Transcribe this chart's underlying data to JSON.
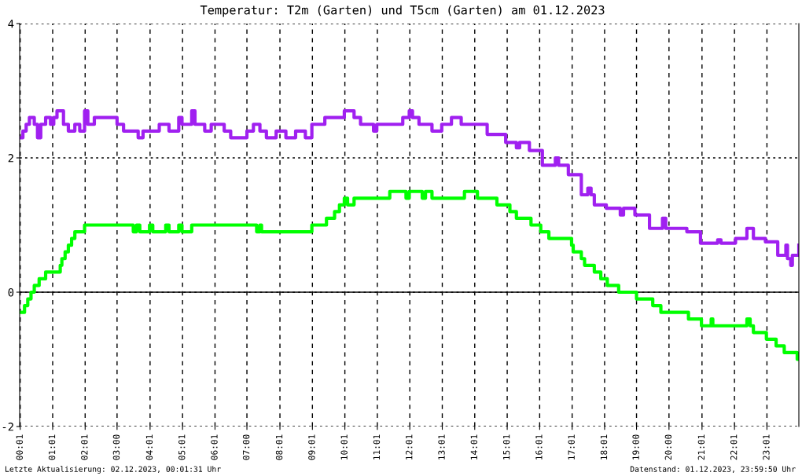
{
  "chart_data": {
    "type": "step",
    "title": "Temperatur: T2m (Garten) und T5cm (Garten) am 01.12.2023",
    "annotations": [
      "Letzte Aktualisierung: 02.12.2023, 00:01:31 Uhr",
      "Datenstand: 01.12.2023, 23:59:50 Uhr"
    ],
    "series": [
      {
        "color": "#00ff00",
        "x": [
          0.0,
          0.15,
          0.25,
          0.35,
          0.45,
          0.6,
          0.8,
          1.25,
          1.3,
          1.4,
          1.5,
          1.6,
          1.7,
          2.0,
          3.5,
          3.6,
          3.7,
          4.0,
          4.1,
          4.5,
          4.6,
          4.9,
          5.0,
          5.3,
          7.3,
          7.4,
          7.45,
          9.0,
          9.45,
          9.7,
          9.85,
          10.0,
          10.1,
          10.3,
          11.4,
          11.9,
          12.0,
          12.4,
          12.5,
          12.7,
          13.7,
          14.1,
          14.7,
          15.1,
          15.3,
          15.75,
          16.05,
          16.3,
          17.0,
          17.05,
          17.3,
          17.4,
          17.7,
          17.9,
          18.1,
          18.45,
          19.0,
          19.5,
          19.75,
          20.6,
          21.0,
          21.3,
          21.35,
          22.4,
          22.5,
          22.6,
          23.0,
          23.3,
          23.55,
          23.95,
          24.0
        ],
        "values": [
          -0.3,
          -0.2,
          -0.1,
          0.0,
          0.1,
          0.2,
          0.3,
          0.4,
          0.5,
          0.6,
          0.7,
          0.8,
          0.9,
          1.0,
          0.9,
          1.0,
          0.9,
          1.0,
          0.9,
          1.0,
          0.9,
          1.0,
          0.9,
          1.0,
          0.9,
          1.0,
          0.9,
          1.0,
          1.1,
          1.2,
          1.3,
          1.4,
          1.3,
          1.4,
          1.5,
          1.4,
          1.5,
          1.4,
          1.5,
          1.4,
          1.5,
          1.4,
          1.3,
          1.2,
          1.1,
          1.0,
          0.9,
          0.8,
          0.7,
          0.6,
          0.5,
          0.4,
          0.3,
          0.2,
          0.1,
          0.0,
          -0.1,
          -0.2,
          -0.3,
          -0.4,
          -0.5,
          -0.4,
          -0.5,
          -0.4,
          -0.5,
          -0.6,
          -0.7,
          -0.8,
          -0.9,
          -1.0,
          -1.0
        ]
      },
      {
        "color": "#a020f0",
        "x": [
          0.0,
          0.1,
          0.2,
          0.3,
          0.45,
          0.55,
          0.65,
          0.8,
          0.95,
          1.05,
          1.15,
          1.35,
          1.5,
          1.7,
          1.85,
          2.0,
          2.1,
          2.3,
          3.0,
          3.2,
          3.5,
          3.65,
          3.8,
          4.3,
          4.6,
          4.9,
          5.0,
          5.3,
          5.4,
          5.7,
          5.9,
          6.3,
          6.5,
          6.9,
          7.0,
          7.2,
          7.4,
          7.6,
          7.9,
          8.2,
          8.5,
          8.8,
          9.0,
          9.4,
          9.8,
          10.0,
          10.3,
          10.5,
          10.9,
          11.0,
          11.8,
          12.0,
          12.1,
          12.3,
          12.7,
          13.0,
          13.3,
          13.6,
          14.4,
          14.97,
          15.3,
          15.4,
          15.7,
          16.1,
          16.5,
          16.6,
          16.9,
          17.3,
          17.5,
          17.6,
          17.7,
          18.07,
          18.5,
          18.6,
          18.95,
          19.4,
          19.8,
          19.9,
          20.55,
          20.97,
          21.5,
          21.6,
          22.05,
          22.4,
          22.6,
          22.97,
          23.35,
          23.6,
          23.65,
          23.75,
          23.8,
          24.0
        ],
        "values": [
          2.3,
          2.4,
          2.5,
          2.6,
          2.5,
          2.3,
          2.5,
          2.6,
          2.5,
          2.6,
          2.7,
          2.5,
          2.4,
          2.5,
          2.4,
          2.7,
          2.5,
          2.6,
          2.5,
          2.4,
          2.4,
          2.3,
          2.4,
          2.5,
          2.4,
          2.6,
          2.5,
          2.7,
          2.5,
          2.4,
          2.5,
          2.4,
          2.3,
          2.3,
          2.4,
          2.5,
          2.4,
          2.3,
          2.4,
          2.3,
          2.4,
          2.3,
          2.5,
          2.6,
          2.6,
          2.7,
          2.6,
          2.5,
          2.4,
          2.5,
          2.6,
          2.7,
          2.6,
          2.5,
          2.4,
          2.5,
          2.6,
          2.5,
          2.35,
          2.23,
          2.15,
          2.23,
          2.11,
          1.89,
          2.0,
          1.89,
          1.75,
          1.45,
          1.55,
          1.45,
          1.3,
          1.25,
          1.15,
          1.25,
          1.15,
          0.95,
          1.1,
          0.95,
          0.9,
          0.73,
          0.78,
          0.73,
          0.8,
          0.95,
          0.8,
          0.75,
          0.55,
          0.7,
          0.5,
          0.4,
          0.55,
          0.7
        ]
      }
    ],
    "xlim": [
      0,
      24
    ],
    "xticks": [
      {
        "value": 0.017,
        "label": "00:01"
      },
      {
        "value": 1.017,
        "label": "01:01"
      },
      {
        "value": 2.017,
        "label": "02:01"
      },
      {
        "value": 3.0,
        "label": "03:00"
      },
      {
        "value": 4.017,
        "label": "04:01"
      },
      {
        "value": 5.017,
        "label": "05:01"
      },
      {
        "value": 6.017,
        "label": "06:01"
      },
      {
        "value": 7.0,
        "label": "07:00"
      },
      {
        "value": 8.017,
        "label": "08:01"
      },
      {
        "value": 9.017,
        "label": "09:01"
      },
      {
        "value": 10.017,
        "label": "10:01"
      },
      {
        "value": 11.017,
        "label": "11:01"
      },
      {
        "value": 12.017,
        "label": "12:01"
      },
      {
        "value": 13.017,
        "label": "13:01"
      },
      {
        "value": 14.017,
        "label": "14:01"
      },
      {
        "value": 15.017,
        "label": "15:01"
      },
      {
        "value": 16.017,
        "label": "16:01"
      },
      {
        "value": 17.017,
        "label": "17:01"
      },
      {
        "value": 18.017,
        "label": "18:01"
      },
      {
        "value": 19.0,
        "label": "19:00"
      },
      {
        "value": 20.0,
        "label": "20:00"
      },
      {
        "value": 21.017,
        "label": "21:01"
      },
      {
        "value": 22.017,
        "label": "22:01"
      },
      {
        "value": 23.017,
        "label": "23:01"
      }
    ],
    "ylim": [
      -2,
      4
    ],
    "yticks": [
      -2,
      0,
      2,
      4
    ],
    "ref_lines": [
      {
        "axis": "y",
        "value": 0,
        "color": "#000000",
        "line_style": "solid"
      }
    ],
    "grid": true,
    "legend": false,
    "marker": "none",
    "line_style": "solid"
  }
}
